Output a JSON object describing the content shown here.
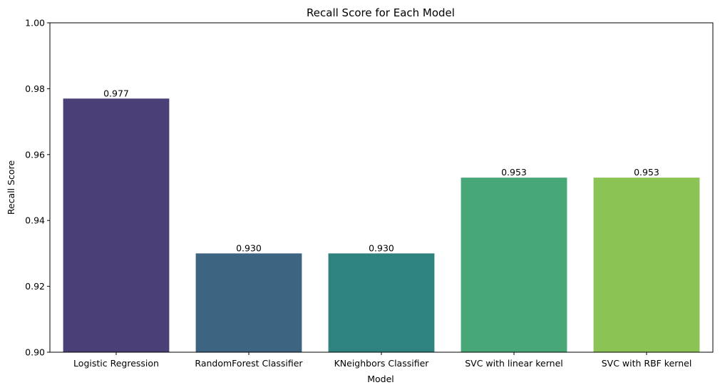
{
  "chart_data": {
    "type": "bar",
    "title": "Recall Score for Each Model",
    "xlabel": "Model",
    "ylabel": "Recall Score",
    "categories": [
      "Logistic Regression",
      "RandomForest Classifier",
      "KNeighbors Classifier",
      "SVC with linear kernel",
      "SVC with RBF kernel"
    ],
    "values": [
      0.977,
      0.93,
      0.93,
      0.953,
      0.953
    ],
    "value_labels": [
      "0.977",
      "0.930",
      "0.930",
      "0.953",
      "0.953"
    ],
    "colors": [
      "#4a3f77",
      "#3d6582",
      "#2f837e",
      "#47a777",
      "#8bc355"
    ],
    "ylim": [
      0.9,
      1.0
    ],
    "yticks": [
      0.9,
      0.92,
      0.94,
      0.96,
      0.98,
      1.0
    ],
    "ytick_labels": [
      "0.90",
      "0.92",
      "0.94",
      "0.96",
      "0.98",
      "1.00"
    ],
    "grid": false,
    "legend": "none"
  }
}
